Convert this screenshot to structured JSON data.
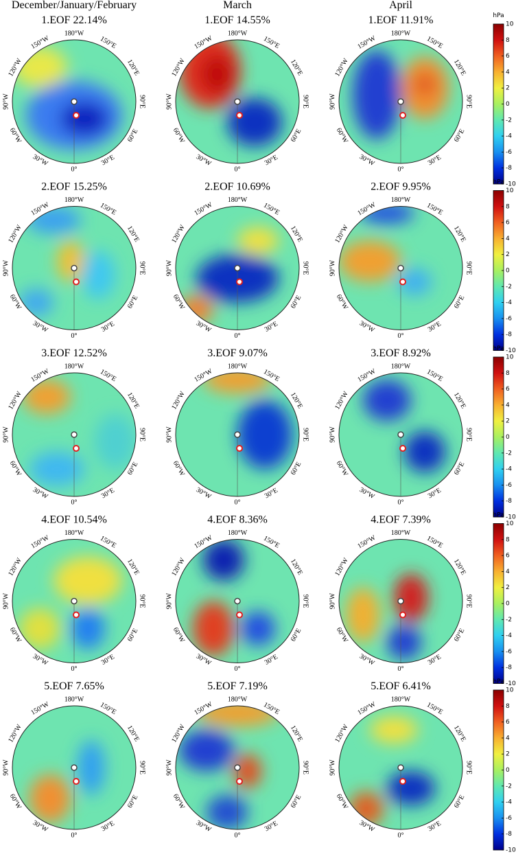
{
  "columns": [
    "December/January/February",
    "March",
    "April"
  ],
  "panels": [
    [
      "1.EOF 22.14%",
      "1.EOF 14.55%",
      "1.EOF 11.91%"
    ],
    [
      "2.EOF 15.25%",
      "2.EOF 10.69%",
      "2.EOF 9.95%"
    ],
    [
      "3.EOF 12.52%",
      "3.EOF 9.07%",
      "3.EOF 8.92%"
    ],
    [
      "4.EOF 10.54%",
      "4.EOF 8.36%",
      "4.EOF 7.39%"
    ],
    [
      "5.EOF 7.65%",
      "5.EOF 7.19%",
      "5.EOF 6.41%"
    ]
  ],
  "longitudes": [
    "180°W",
    "150°E",
    "120°E",
    "90°E",
    "60°E",
    "30°E",
    "0°",
    "30°W",
    "60°W",
    "90°W",
    "120°W",
    "150°W"
  ],
  "colorbar": {
    "unit": "hPa",
    "limits": [
      -10,
      10
    ],
    "ticks": [
      10,
      8,
      6,
      4,
      2,
      0,
      -2,
      -4,
      -6,
      -8,
      -10
    ],
    "colors": [
      "#00008b",
      "#0030e0",
      "#1890f0",
      "#30d0f0",
      "#60e8b0",
      "#a8f060",
      "#f0f040",
      "#f8b030",
      "#f06020",
      "#d01010",
      "#8b0000"
    ]
  }
}
